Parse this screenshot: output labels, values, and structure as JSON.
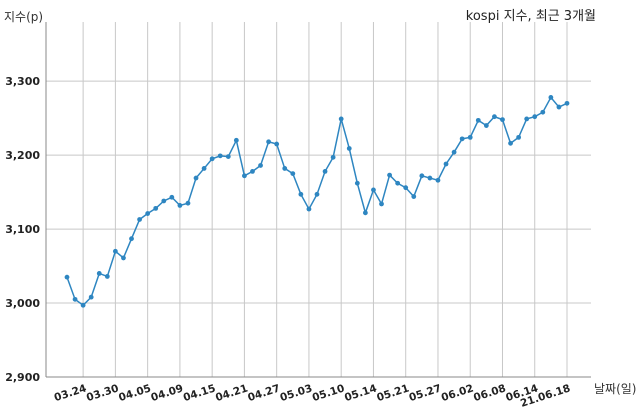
{
  "chart_data": {
    "type": "line",
    "title": "kospi 지수, 최근 3개월",
    "ylabel": "지수(p)",
    "xlabel": "날짜(일)",
    "ylim": [
      2900,
      3380
    ],
    "yticks": [
      2900,
      3000,
      3100,
      3200,
      3300
    ],
    "ytick_labels": [
      "2,900",
      "3,000",
      "3,100",
      "3,200",
      "3,300"
    ],
    "grid": true,
    "line_color": "#2e86c1",
    "x_tick_labels": [
      "03.24",
      "03.30",
      "04.05",
      "04.09",
      "04.15",
      "04.21",
      "04.27",
      "05.03",
      "05.10",
      "05.14",
      "05.21",
      "05.27",
      "06.02",
      "06.08",
      "06.14",
      "21.06.18"
    ],
    "x_tick_indices": [
      2,
      6,
      10,
      14,
      18,
      22,
      26,
      30,
      34,
      38,
      42,
      46,
      50,
      54,
      58,
      62
    ],
    "series": [
      {
        "values": [
          3035,
          3005,
          2997,
          3008,
          3040,
          3036,
          3070,
          3061,
          3087,
          3113,
          3121,
          3128,
          3138,
          3143,
          3132,
          3135,
          3169,
          3182,
          3195,
          3199,
          3198,
          3220,
          3172,
          3178,
          3186,
          3218,
          3215,
          3182,
          3175,
          3147,
          3127,
          3147,
          3178,
          3197,
          3249,
          3209,
          3162,
          3122,
          3153,
          3134,
          3173,
          3162,
          3156,
          3144,
          3172,
          3169,
          3166,
          3188,
          3204,
          3222,
          3224,
          3247,
          3240,
          3252,
          3248,
          3216,
          3224,
          3249,
          3252,
          3258,
          3278,
          3265,
          3270
        ]
      }
    ]
  }
}
